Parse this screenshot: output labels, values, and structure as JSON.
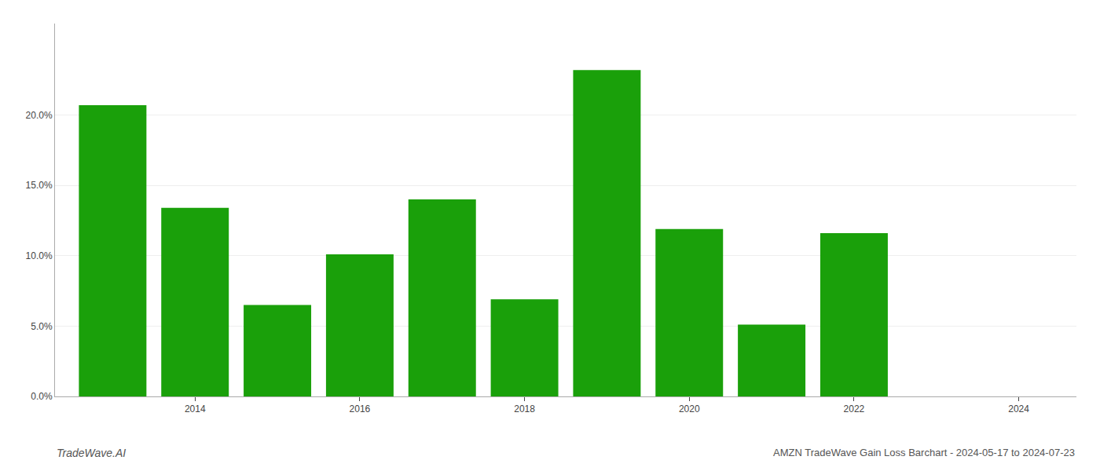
{
  "chart_data": {
    "type": "bar",
    "title": "AMZN TradeWave Gain Loss Barchart - 2024-05-17 to 2024-07-23",
    "annotations": [
      "TradeWave.AI"
    ],
    "x": [
      2013,
      2014,
      2015,
      2016,
      2017,
      2018,
      2019,
      2020,
      2021,
      2022
    ],
    "values": [
      0.207,
      0.134,
      0.065,
      0.101,
      0.14,
      0.069,
      0.232,
      0.119,
      0.051,
      0.116
    ],
    "color": "#1aa00a",
    "xlim": [
      2012.3,
      2024.7
    ],
    "xticks": [
      2014,
      2016,
      2018,
      2020,
      2022,
      2024
    ],
    "ylim": [
      0,
      0.265
    ],
    "yticks": [
      {
        "value": 0.0,
        "label": "0.0%"
      },
      {
        "value": 0.05,
        "label": "5.0%"
      },
      {
        "value": 0.1,
        "label": "10.0%"
      },
      {
        "value": 0.15,
        "label": "15.0%"
      },
      {
        "value": 0.2,
        "label": "20.0%"
      }
    ],
    "grid": true
  }
}
